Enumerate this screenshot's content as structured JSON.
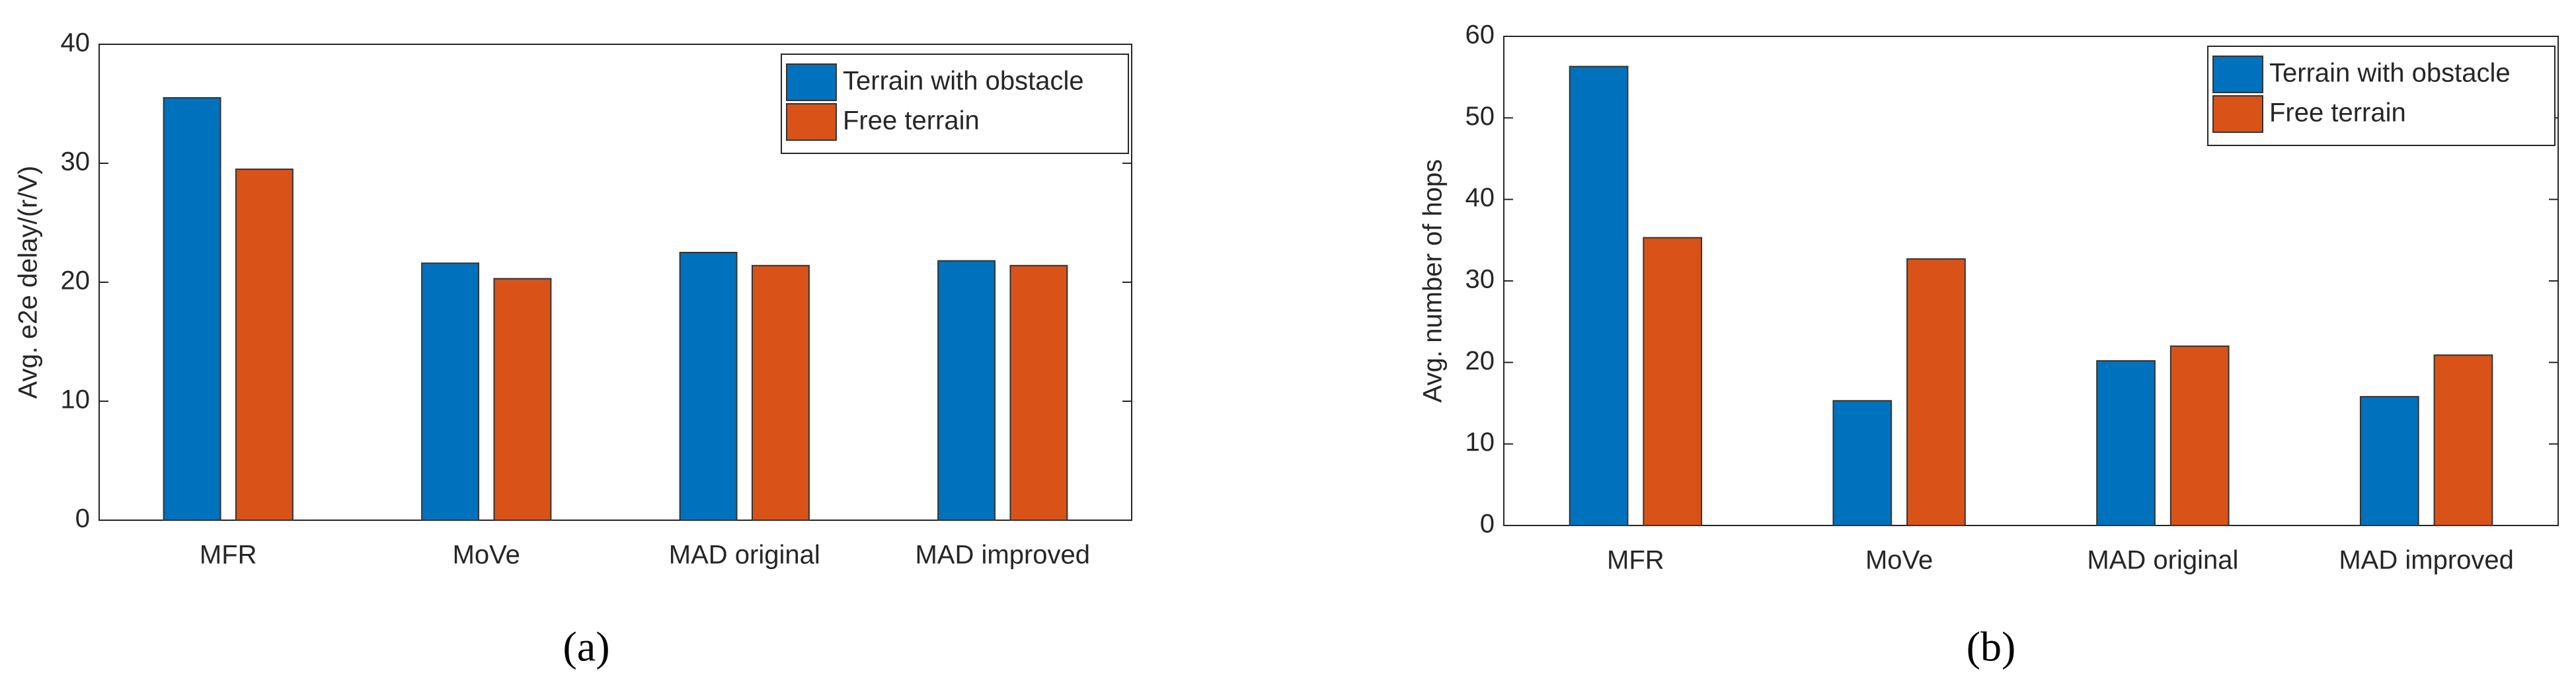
{
  "chart_data": [
    {
      "type": "bar",
      "caption": "(a)",
      "y_label": "Avg. e2e delay/(r/V)",
      "categories": [
        "MFR",
        "MoVe",
        "MAD original",
        "MAD improved"
      ],
      "series": [
        {
          "name": "Terrain with obstacle",
          "color": "#0072bd",
          "values": [
            35.5,
            21.6,
            22.5,
            21.8
          ]
        },
        {
          "name": "Free terrain",
          "color": "#d95319",
          "values": [
            29.5,
            20.3,
            21.4,
            21.4
          ]
        }
      ],
      "ylim": [
        0,
        40
      ],
      "yticks": [
        0,
        10,
        20,
        30,
        40
      ],
      "grid": false,
      "legend": "upper-right"
    },
    {
      "type": "bar",
      "caption": "(b)",
      "y_label": "Avg. number of hops",
      "categories": [
        "MFR",
        "MoVe",
        "MAD original",
        "MAD improved"
      ],
      "series": [
        {
          "name": "Terrain with obstacle",
          "color": "#0072bd",
          "values": [
            56.3,
            15.3,
            20.2,
            15.8
          ]
        },
        {
          "name": "Free terrain",
          "color": "#d95319",
          "values": [
            35.3,
            32.7,
            22.0,
            20.9
          ]
        }
      ],
      "ylim": [
        0,
        60
      ],
      "yticks": [
        0,
        10,
        20,
        30,
        40,
        50,
        60
      ],
      "grid": false,
      "legend": "upper-right"
    }
  ]
}
